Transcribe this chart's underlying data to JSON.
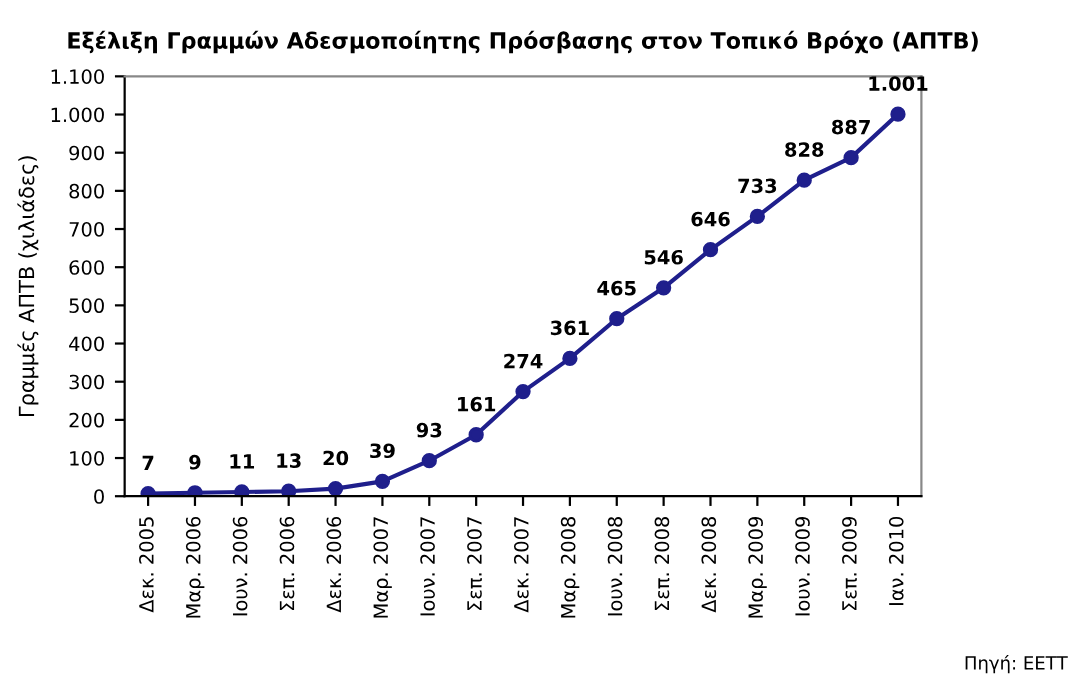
{
  "chart_data": {
    "type": "line",
    "title": "Εξέλιξη Γραμμών Αδεσμοποίητης Πρόσβασης στον Τοπικό Βρόχο (ΑΠΤΒ)",
    "ylabel": "Γραμμές ΑΠΤΒ (χιλιάδες)",
    "annotations": [
      "Πηγή: ΕΕΤΤ"
    ],
    "categories": [
      "Δεκ. 2005",
      "Μαρ. 2006",
      "Ιουν. 2006",
      "Σεπ. 2006",
      "Δεκ. 2006",
      "Μαρ. 2007",
      "Ιουν. 2007",
      "Σεπ. 2007",
      "Δεκ. 2007",
      "Μαρ. 2008",
      "Ιουν. 2008",
      "Σεπ. 2008",
      "Δεκ. 2008",
      "Μαρ. 2009",
      "Ιουν. 2009",
      "Σεπ. 2009",
      "Ιαν. 2010"
    ],
    "series": [
      {
        "color": "#1f1f8c",
        "values": [
          7,
          9,
          11,
          13,
          20,
          39,
          93,
          161,
          274,
          361,
          465,
          546,
          646,
          733,
          828,
          887,
          1001
        ],
        "value_labels": [
          "7",
          "9",
          "11",
          "13",
          "20",
          "39",
          "93",
          "161",
          "274",
          "361",
          "465",
          "546",
          "646",
          "733",
          "828",
          "887",
          "1.001"
        ]
      }
    ],
    "ylim": [
      0,
      1100
    ],
    "yticks": [
      0,
      100,
      200,
      300,
      400,
      500,
      600,
      700,
      800,
      900,
      {
        "value": 1000,
        "label": "1.000"
      },
      {
        "value": 1100,
        "label": "1.100"
      }
    ],
    "marker": "circle",
    "line_style": "solid",
    "grid": false,
    "legend": false
  }
}
